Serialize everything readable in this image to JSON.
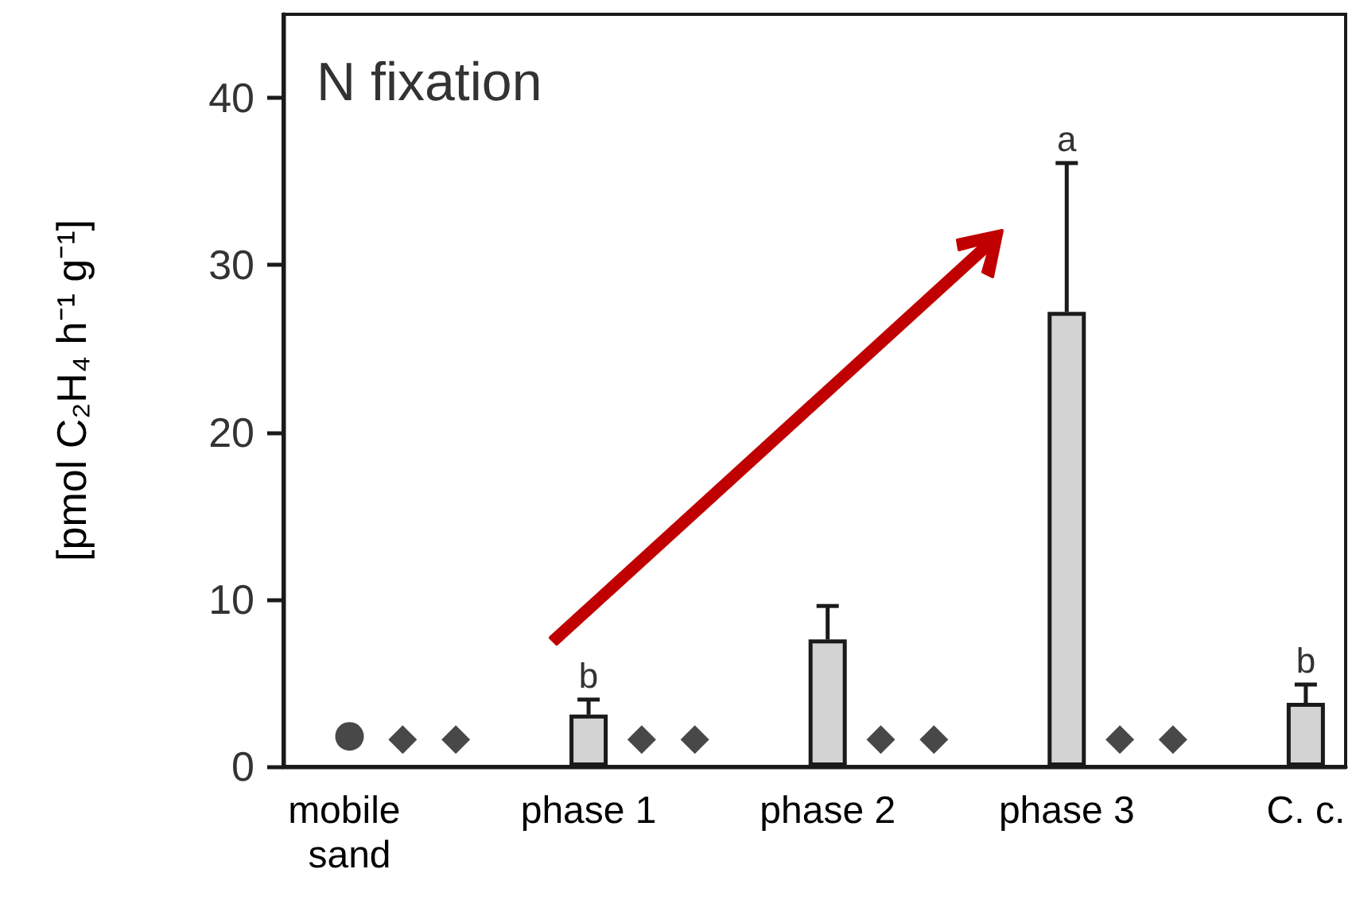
{
  "chart_data": {
    "type": "bar",
    "title": "N fixation",
    "ylabel": "[pmol C₂H₄ h⁻¹ g⁻¹]",
    "categories": [
      null,
      null,
      "mobile sand",
      null,
      null,
      null,
      null,
      null,
      null,
      null,
      null,
      "phase 1",
      null,
      null,
      null,
      null,
      null,
      null,
      null,
      null,
      "phase 2",
      null,
      null,
      null,
      null,
      null,
      null,
      null,
      null,
      "phase 3",
      null,
      null,
      null,
      null,
      null,
      null,
      null,
      null,
      "C. c.",
      null
    ],
    "series": [
      {
        "color": "#d3d3d3",
        "values": [
          null,
          null,
          null,
          null,
          null,
          null,
          null,
          null,
          null,
          null,
          null,
          3.1,
          null,
          null,
          null,
          null,
          null,
          null,
          null,
          null,
          7.6,
          null,
          null,
          null,
          null,
          null,
          null,
          null,
          null,
          27.2,
          null,
          null,
          null,
          null,
          null,
          null,
          null,
          null,
          3.8,
          null
        ],
        "errors": [
          null,
          null,
          null,
          null,
          null,
          null,
          null,
          null,
          null,
          null,
          null,
          0.9,
          null,
          null,
          null,
          null,
          null,
          null,
          null,
          null,
          2.0,
          null,
          null,
          null,
          null,
          null,
          null,
          null,
          null,
          8.9,
          null,
          null,
          null,
          null,
          null,
          null,
          null,
          null,
          1.1,
          null
        ]
      },
      {
        "type": "scatter",
        "marker": "circle",
        "color": "#1a1a1a",
        "values": [
          null,
          null,
          1.8,
          null,
          null,
          null,
          null,
          null,
          null,
          null,
          null,
          null,
          null,
          null,
          null,
          null,
          null,
          null,
          null,
          null,
          null,
          null,
          null,
          null,
          null,
          null,
          null,
          null,
          null,
          null,
          null,
          null,
          null,
          null,
          null,
          null,
          null,
          null,
          null,
          null
        ]
      },
      {
        "type": "scatter",
        "marker": "diamond",
        "color": "#1a1a1a",
        "values": [
          null,
          null,
          null,
          null,
          1.6,
          null,
          1.6,
          null,
          null,
          null,
          null,
          null,
          null,
          1.6,
          null,
          1.6,
          null,
          null,
          null,
          null,
          null,
          null,
          1.6,
          null,
          1.6,
          null,
          null,
          null,
          null,
          null,
          null,
          1.6,
          null,
          1.6,
          null,
          null,
          null,
          null,
          null,
          null
        ]
      }
    ],
    "annotations": [
      {
        "text": "b",
        "x": "phase 1",
        "y": 4.0
      },
      {
        "text": "a",
        "x": "phase 3",
        "y": 36.1
      },
      {
        "text": "b",
        "x": "C. c.",
        "y": 4.9
      }
    ],
    "ylim": [
      0,
      45
    ],
    "yticks": [
      0,
      10,
      20,
      30,
      40
    ],
    "grid": false
  }
}
